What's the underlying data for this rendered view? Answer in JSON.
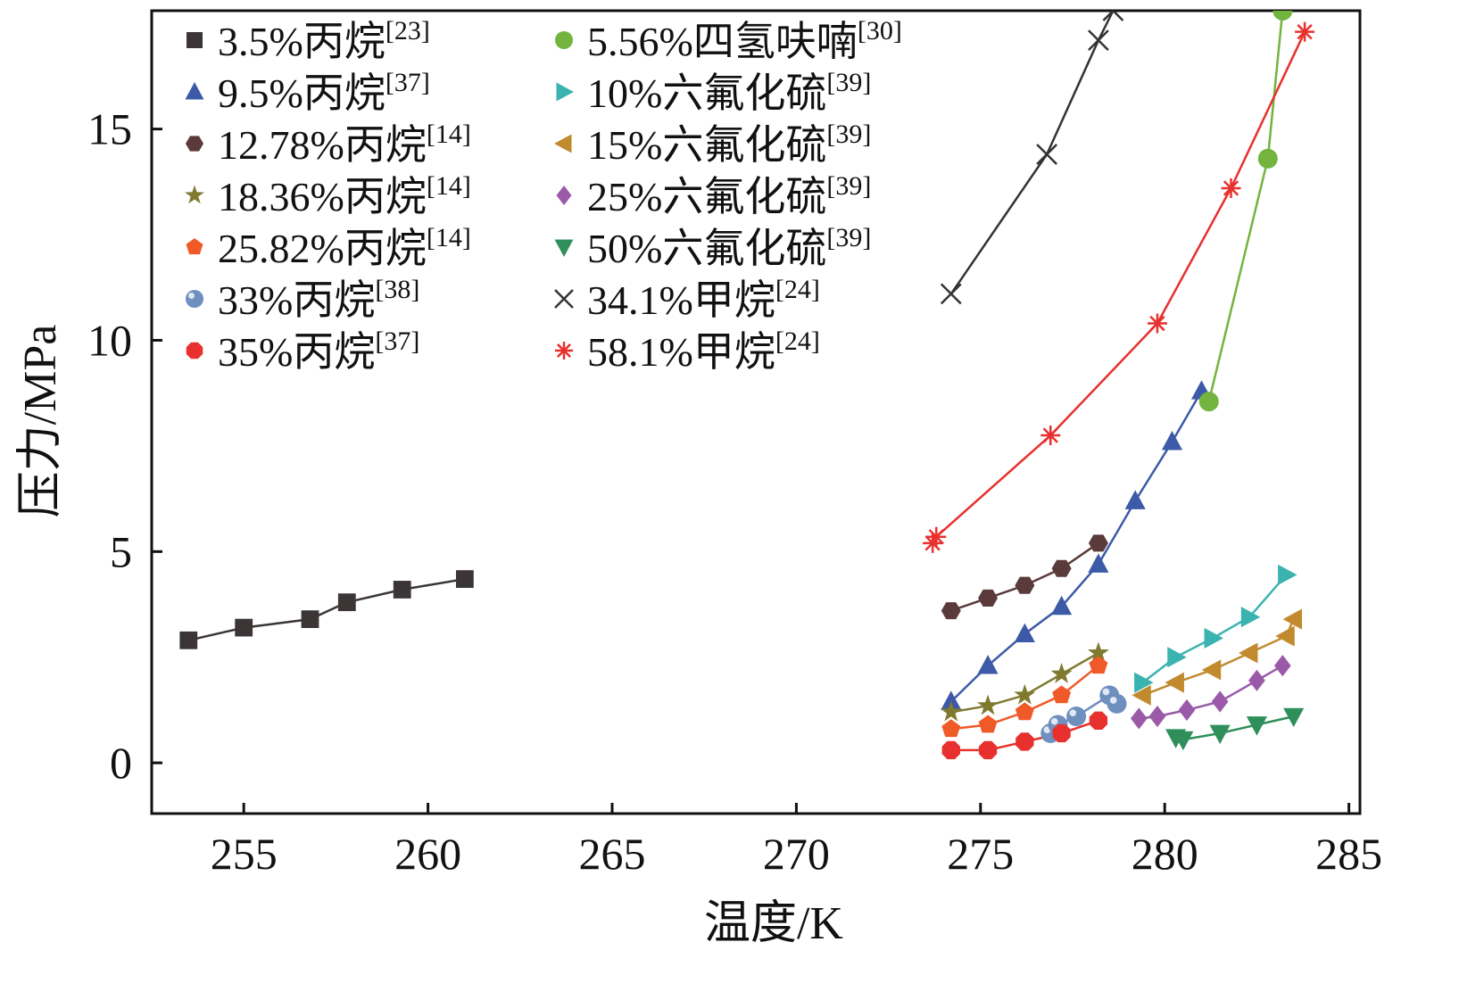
{
  "chart_data": {
    "type": "line",
    "title": "",
    "xlabel": "温度/K",
    "ylabel": "压力/MPa",
    "xlim": [
      252.5,
      285.3
    ],
    "ylim": [
      -1.2,
      17.8
    ],
    "xticks": [
      255,
      260,
      265,
      270,
      275,
      280,
      285
    ],
    "yticks": [
      0,
      5,
      10,
      15
    ],
    "grid": false,
    "legend_position": "top-left",
    "series": [
      {
        "name": "3.5%丙烷",
        "ref": "[23]",
        "marker": "square",
        "color": "#3b3535",
        "line": "#3b3535",
        "x": [
          253.5,
          255.0,
          256.8,
          257.8,
          259.3,
          261.0
        ],
        "y": [
          2.9,
          3.2,
          3.4,
          3.8,
          4.1,
          4.35
        ]
      },
      {
        "name": "9.5%丙烷",
        "ref": "[37]",
        "marker": "triangle-up",
        "color": "#3d5aa8",
        "line": "#3d5aa8",
        "x": [
          274.2,
          275.2,
          276.2,
          277.2,
          278.2,
          279.2,
          280.2,
          281.0
        ],
        "y": [
          1.45,
          2.3,
          3.05,
          3.7,
          4.7,
          6.2,
          7.6,
          8.8
        ]
      },
      {
        "name": "12.78%丙烷",
        "ref": "[14]",
        "marker": "hexagon",
        "color": "#5a3a3a",
        "line": "#5a3a3a",
        "x": [
          274.2,
          275.2,
          276.2,
          277.2,
          278.2
        ],
        "y": [
          3.6,
          3.9,
          4.2,
          4.6,
          5.2
        ]
      },
      {
        "name": "18.36%丙烷",
        "ref": "[14]",
        "marker": "star",
        "color": "#7f7a30",
        "line": "#7f7a30",
        "x": [
          274.2,
          275.2,
          276.2,
          277.2,
          278.2
        ],
        "y": [
          1.2,
          1.35,
          1.6,
          2.1,
          2.6
        ]
      },
      {
        "name": "25.82%丙烷",
        "ref": "[14]",
        "marker": "pentagon",
        "color": "#f05a28",
        "line": "#f05a28",
        "x": [
          274.2,
          275.2,
          276.2,
          277.2,
          278.2
        ],
        "y": [
          0.8,
          0.9,
          1.2,
          1.6,
          2.3
        ]
      },
      {
        "name": "33%丙烷",
        "ref": "[38]",
        "marker": "sphere",
        "color": "#6f8fbf",
        "line": "#6f8fbf",
        "x": [
          276.9,
          277.1,
          277.6,
          278.5,
          278.7
        ],
        "y": [
          0.7,
          0.9,
          1.1,
          1.6,
          1.4
        ]
      },
      {
        "name": "35%丙烷",
        "ref": "[37]",
        "marker": "circle-hex",
        "color": "#e8302e",
        "line": "#e8302e",
        "x": [
          274.2,
          275.2,
          276.2,
          277.2,
          278.2
        ],
        "y": [
          0.3,
          0.3,
          0.5,
          0.7,
          1.0
        ]
      },
      {
        "name": "5.56%四氢呋喃",
        "ref": "[30]",
        "marker": "circle",
        "color": "#72b43e",
        "line": "#72b43e",
        "x": [
          281.2,
          282.8,
          283.2
        ],
        "y": [
          8.55,
          14.3,
          17.8
        ]
      },
      {
        "name": "10%六氟化硫",
        "ref": "[39]",
        "marker": "triangle-right",
        "color": "#3bb3b0",
        "line": "#3bb3b0",
        "x": [
          279.4,
          280.3,
          281.3,
          282.3,
          283.3
        ],
        "y": [
          1.9,
          2.5,
          2.95,
          3.45,
          4.45
        ]
      },
      {
        "name": "15%六氟化硫",
        "ref": "[39]",
        "marker": "triangle-left",
        "color": "#c18a2e",
        "line": "#c18a2e",
        "x": [
          279.4,
          280.3,
          281.3,
          282.3,
          283.3,
          283.5
        ],
        "y": [
          1.6,
          1.9,
          2.2,
          2.6,
          3.0,
          3.4
        ]
      },
      {
        "name": "25%六氟化硫",
        "ref": "[39]",
        "marker": "diamond",
        "color": "#9a5aa8",
        "line": "#9a5aa8",
        "x": [
          279.3,
          279.8,
          280.6,
          281.5,
          282.5,
          283.2
        ],
        "y": [
          1.05,
          1.1,
          1.25,
          1.45,
          1.95,
          2.3
        ]
      },
      {
        "name": "50%六氟化硫",
        "ref": "[39]",
        "marker": "triangle-down",
        "color": "#2f8f5a",
        "line": "#2f8f5a",
        "x": [
          280.3,
          280.5,
          281.5,
          282.5,
          283.5
        ],
        "y": [
          0.6,
          0.55,
          0.7,
          0.9,
          1.1
        ]
      },
      {
        "name": "34.1%甲烷",
        "ref": "[24]",
        "marker": "x",
        "color": "#333333",
        "line": "#333333",
        "x": [
          274.2,
          276.8,
          278.2,
          278.6
        ],
        "y": [
          11.1,
          14.4,
          17.1,
          17.8
        ]
      },
      {
        "name": "58.1%甲烷",
        "ref": "[24]",
        "marker": "asterisk",
        "color": "#e8302e",
        "line": "#e8302e",
        "x": [
          273.7,
          273.8,
          276.9,
          279.8,
          281.8,
          283.8
        ],
        "y": [
          5.2,
          5.35,
          7.75,
          10.4,
          13.6,
          17.3
        ]
      }
    ]
  }
}
